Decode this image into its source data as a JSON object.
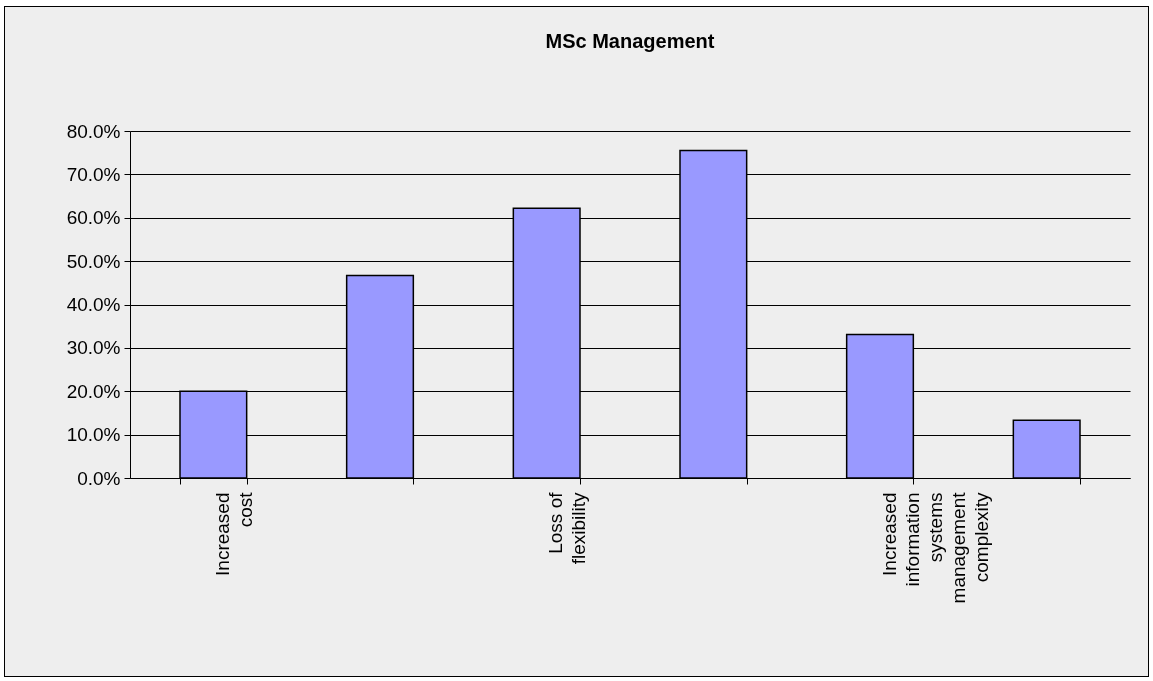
{
  "chart_data": {
    "type": "bar",
    "title": "MSc Management",
    "categories": [
      "Increased cost",
      null,
      "Loss of flexibility",
      null,
      "Increased information systems management complexity",
      null
    ],
    "values": [
      20.0,
      46.7,
      62.2,
      75.5,
      33.1,
      13.3
    ],
    "color": "#9999ff",
    "ylim": [
      0,
      80
    ],
    "yticks": [
      {
        "value": 0,
        "label": "0.0%"
      },
      {
        "value": 10,
        "label": "10.0%"
      },
      {
        "value": 20,
        "label": "20.0%"
      },
      {
        "value": 30,
        "label": "30.0%"
      },
      {
        "value": 40,
        "label": "40.0%"
      },
      {
        "value": 50,
        "label": "50.0%"
      },
      {
        "value": 60,
        "label": "60.0%"
      },
      {
        "value": 70,
        "label": "70.0%"
      },
      {
        "value": 80,
        "label": "80.0%"
      }
    ],
    "grid": "y"
  }
}
